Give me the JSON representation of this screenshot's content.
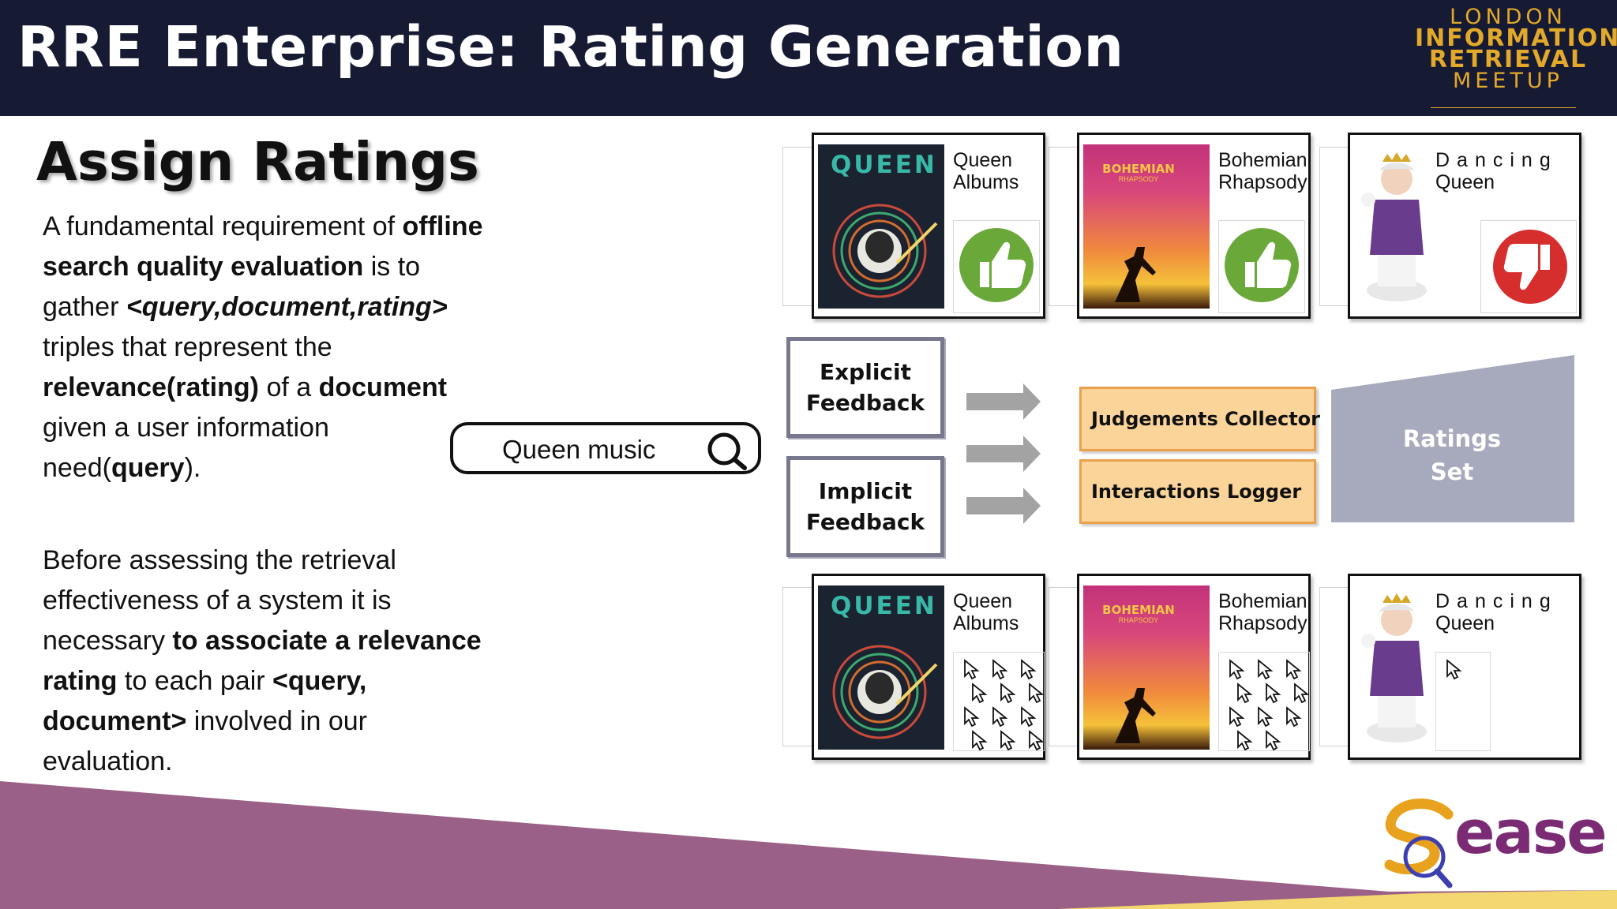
{
  "header": {
    "title": "RRE Enterprise: Rating Generation"
  },
  "meetup_logo": {
    "line1": "LONDON",
    "line2": "INFORMATION",
    "line3": "RETRIEVAL",
    "line4": "MEETUP"
  },
  "section_title": "Assign Ratings",
  "paragraph1": {
    "t1": "A fundamental requirement of ",
    "t2": "offline search quality evaluation",
    "t3": " is to gather ",
    "t4": "<query,document,rating>",
    "t5": " triples that represent the ",
    "t6": "relevance(rating)",
    "t7": " of a ",
    "t8": "document",
    "t9": " given a user information need(",
    "t10": "query",
    "t11": ")."
  },
  "paragraph2": {
    "t1": "Before assessing the retrieval effectiveness of a system it is necessary ",
    "t2": "to associate a relevance rating",
    "t3": " to each pair ",
    "t4": "<query, document>",
    "t5": " involved in our evaluation."
  },
  "search": {
    "query": "Queen music"
  },
  "top_cards": [
    {
      "title_l1": "Queen",
      "title_l2": "Albums",
      "feedback": "thumbs-up"
    },
    {
      "title_l1": "Bohemian",
      "title_l2": "Rhapsody",
      "feedback": "thumbs-up"
    },
    {
      "title_l1": "Dancing",
      "title_l2": "Queen",
      "feedback": "thumbs-down"
    }
  ],
  "bottom_cards": [
    {
      "title_l1": "Queen",
      "title_l2": "Albums",
      "clicks": 13
    },
    {
      "title_l1": "Bohemian",
      "title_l2": "Rhapsody",
      "clicks": 11
    },
    {
      "title_l1": "Dancing",
      "title_l2": "Queen",
      "clicks": 1
    }
  ],
  "album_art": {
    "queen": "QUEEN",
    "bohemian": "BOHEMIAN",
    "bohemian_sub": "RHAPSODY"
  },
  "flow": {
    "explicit_l1": "Explicit",
    "explicit_l2": "Feedback",
    "implicit_l1": "Implicit",
    "implicit_l2": "Feedback",
    "collector": "Judgements Collector",
    "logger": "Interactions Logger",
    "ratings_l1": "Ratings",
    "ratings_l2": "Set"
  },
  "footer": {
    "logo_text": "ease"
  },
  "colors": {
    "header_bg": "#161a33",
    "gold": "#e2a92a",
    "purple": "#9a6087",
    "orange_fill": "#fbd49a",
    "gray_box": "#a7a9bc"
  }
}
